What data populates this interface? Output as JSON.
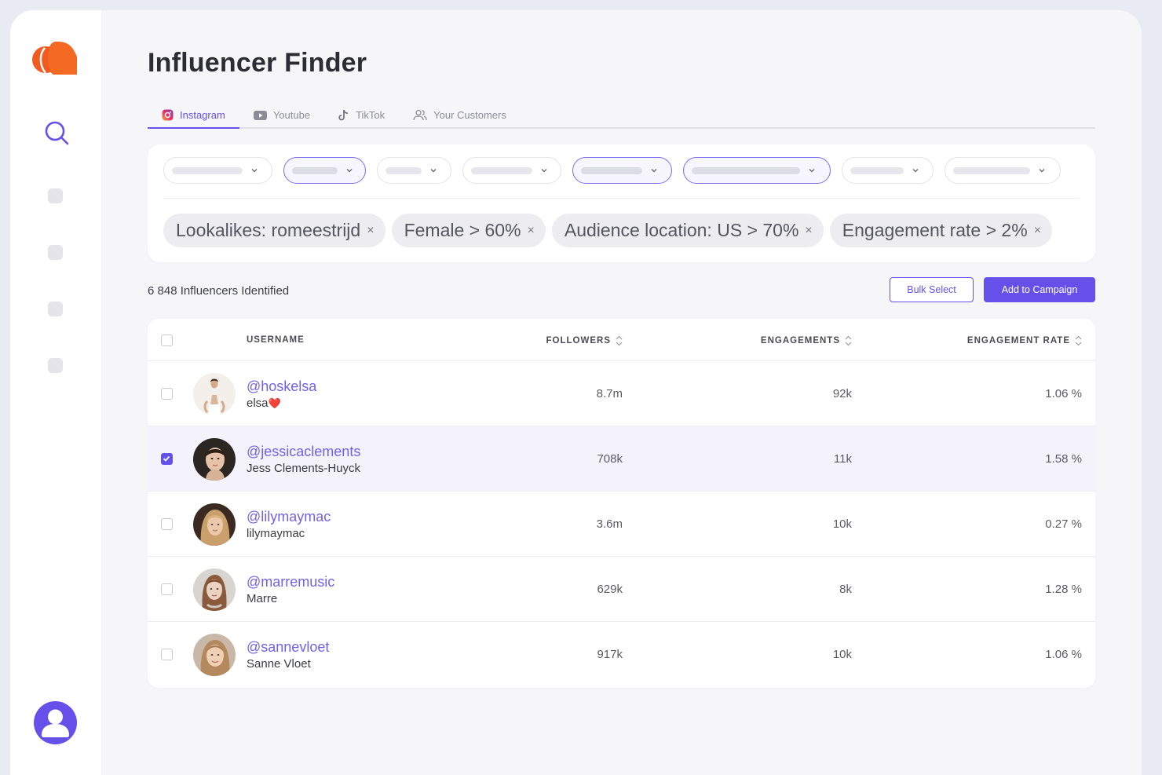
{
  "page": {
    "title": "Influencer Finder"
  },
  "tabs": [
    {
      "label": "Instagram",
      "icon": "instagram-icon",
      "active": true
    },
    {
      "label": "Youtube",
      "icon": "youtube-icon"
    },
    {
      "label": "TikTok",
      "icon": "tiktok-icon"
    },
    {
      "label": "Your Customers",
      "icon": "users-icon"
    }
  ],
  "filters": {
    "chips": [
      {
        "label": "Lookalikes: romeestrijd"
      },
      {
        "label": "Female > 60%"
      },
      {
        "label": "Audience location: US > 70%"
      },
      {
        "label": "Engagement rate > 2%"
      }
    ],
    "remove_glyph": "×"
  },
  "results": {
    "count_label": "6 848 Influencers Identified",
    "bulk_select_label": "Bulk Select",
    "add_to_campaign_label": "Add to Campaign"
  },
  "table": {
    "columns": {
      "username": "USERNAME",
      "followers": "FOLLOWERS",
      "engagements": "ENGAGEMENTS",
      "engagement_rate": "ENGAGEMENT RATE"
    },
    "rows": [
      {
        "handle": "@hoskelsa",
        "name": "elsa",
        "emoji": "❤️",
        "followers": "8.7m",
        "engagements": "92k",
        "rate": "1.06 %",
        "checked": false
      },
      {
        "handle": "@jessicaclements",
        "name": "Jess Clements-Huyck",
        "followers": "708k",
        "engagements": "11k",
        "rate": "1.58 %",
        "checked": true
      },
      {
        "handle": "@lilymaymac",
        "name": "lilymaymac",
        "followers": "3.6m",
        "engagements": "10k",
        "rate": "0.27 %",
        "checked": false
      },
      {
        "handle": "@marremusic",
        "name": "Marre",
        "followers": "629k",
        "engagements": "8k",
        "rate": "1.28 %",
        "checked": false
      },
      {
        "handle": "@sannevloet",
        "name": "Sanne Vloet",
        "followers": "917k",
        "engagements": "10k",
        "rate": "1.06 %",
        "checked": false
      }
    ]
  },
  "colors": {
    "accent": "#6551ea",
    "brand": "#f25a1f",
    "link": "#7062e8"
  }
}
